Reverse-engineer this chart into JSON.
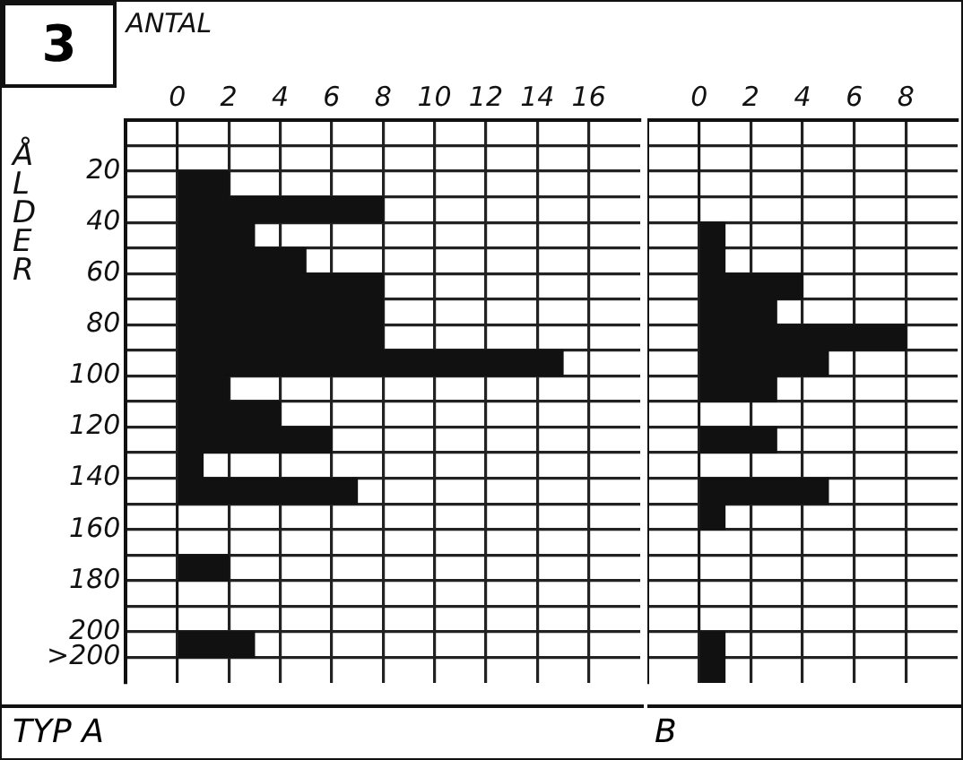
{
  "chart_data": [
    {
      "type": "histogram",
      "orientation": "horizontal",
      "xlabel": "ANTAL",
      "ylabel": "ÅLDER",
      "annotations": [
        "3",
        "TYP A"
      ],
      "bins": [
        0,
        10,
        20,
        30,
        40,
        50,
        60,
        70,
        80,
        90,
        100,
        110,
        120,
        130,
        140,
        150,
        160,
        170,
        180,
        190,
        200,
        210,
        220
      ],
      "values": [
        0,
        0,
        2,
        8,
        3,
        5,
        8,
        8,
        8,
        15,
        2,
        4,
        6,
        1,
        7,
        0,
        0,
        2,
        0,
        0,
        3,
        0
      ],
      "color": "#111111",
      "xlim": [
        -2,
        18
      ],
      "xticks": [
        0,
        2,
        4,
        6,
        8,
        10,
        12,
        14,
        16
      ],
      "ylim": [
        220,
        0
      ],
      "yticks": [
        {
          "value": 10,
          "label": null
        },
        20,
        {
          "value": 30,
          "label": null
        },
        40,
        {
          "value": 50,
          "label": null
        },
        60,
        {
          "value": 70,
          "label": null
        },
        80,
        {
          "value": 90,
          "label": null
        },
        100,
        {
          "value": 110,
          "label": null
        },
        120,
        {
          "value": 130,
          "label": null
        },
        140,
        {
          "value": 150,
          "label": null
        },
        160,
        {
          "value": 170,
          "label": null
        },
        180,
        {
          "value": 190,
          "label": null
        },
        200,
        {
          "value": 210,
          "label": ">200"
        }
      ],
      "grid": true
    },
    {
      "type": "histogram",
      "orientation": "horizontal",
      "annotations": [
        "B"
      ],
      "bins": [
        0,
        10,
        20,
        30,
        40,
        50,
        60,
        70,
        80,
        90,
        100,
        110,
        120,
        130,
        140,
        150,
        160,
        170,
        180,
        190,
        200,
        210,
        220
      ],
      "values": [
        0,
        0,
        0,
        0,
        1,
        1,
        4,
        3,
        8,
        5,
        3,
        0,
        3,
        0,
        5,
        1,
        0,
        0,
        0,
        0,
        1,
        1
      ],
      "color": "#111111",
      "xlim": [
        -2,
        10
      ],
      "xticks": [
        0,
        2,
        4,
        6,
        8
      ],
      "ylim": [
        220,
        0
      ],
      "yticks": [
        {
          "value": 10,
          "label": null
        },
        20,
        {
          "value": 30,
          "label": null
        },
        40,
        {
          "value": 50,
          "label": null
        },
        60,
        {
          "value": 70,
          "label": null
        },
        80,
        {
          "value": 90,
          "label": null
        },
        100,
        {
          "value": 110,
          "label": null
        },
        120,
        {
          "value": 130,
          "label": null
        },
        140,
        {
          "value": 150,
          "label": null
        },
        160,
        {
          "value": 170,
          "label": null
        },
        180,
        {
          "value": 190,
          "label": null
        },
        200,
        {
          "value": 210,
          "label": null
        }
      ],
      "grid": true,
      "tick_labels": "x"
    }
  ]
}
